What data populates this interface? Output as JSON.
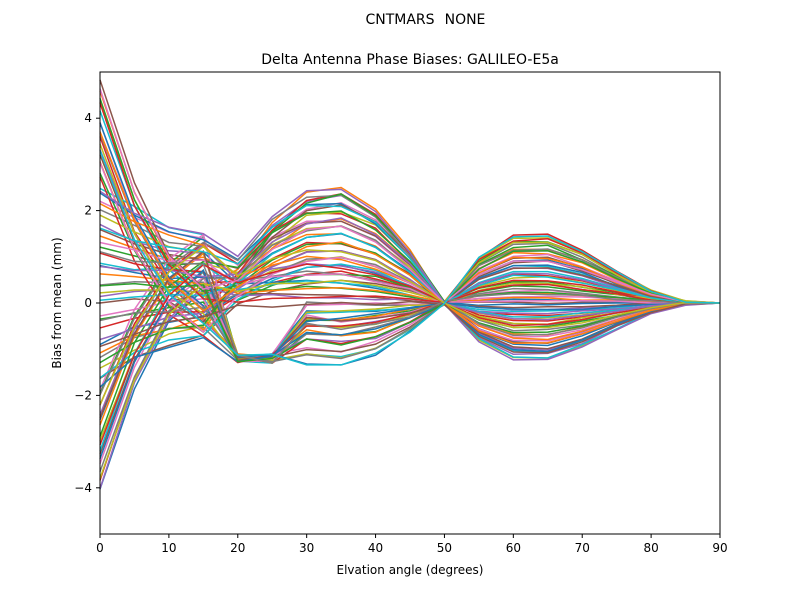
{
  "header": {
    "station": "CNTMARS",
    "antenna": "NONE"
  },
  "chart_data": {
    "type": "line",
    "title": "Delta Antenna Phase Biases: GALILEO-E5a",
    "xlabel": "Elvation angle (degrees)",
    "ylabel": "Bias from mean (mm)",
    "xlim": [
      0,
      90
    ],
    "ylim": [
      -5,
      5
    ],
    "xticks": [
      0,
      10,
      20,
      30,
      40,
      50,
      60,
      70,
      80,
      90
    ],
    "yticks": [
      -4,
      -2,
      0,
      2,
      4
    ],
    "ytick_labels": [
      "−4",
      "−2",
      "0",
      "2",
      "4"
    ],
    "grid": false,
    "x": [
      0,
      5,
      10,
      15,
      20,
      25,
      30,
      35,
      40,
      45,
      50,
      55,
      60,
      65,
      70,
      75,
      80,
      85,
      90
    ],
    "colors": [
      "#1f77b4",
      "#ff7f0e",
      "#2ca02c",
      "#d62728",
      "#9467bd",
      "#8c564b",
      "#e377c2",
      "#7f7f7f",
      "#bcbd22",
      "#17becf"
    ],
    "family_params": {
      "series_count": 80,
      "start_range": [
        -4.1,
        4.85
      ],
      "hump_peak_range": [
        -1.4,
        2.48
      ],
      "late_peak_range": [
        -1.3,
        1.6
      ],
      "end_value": 0
    },
    "series": []
  }
}
